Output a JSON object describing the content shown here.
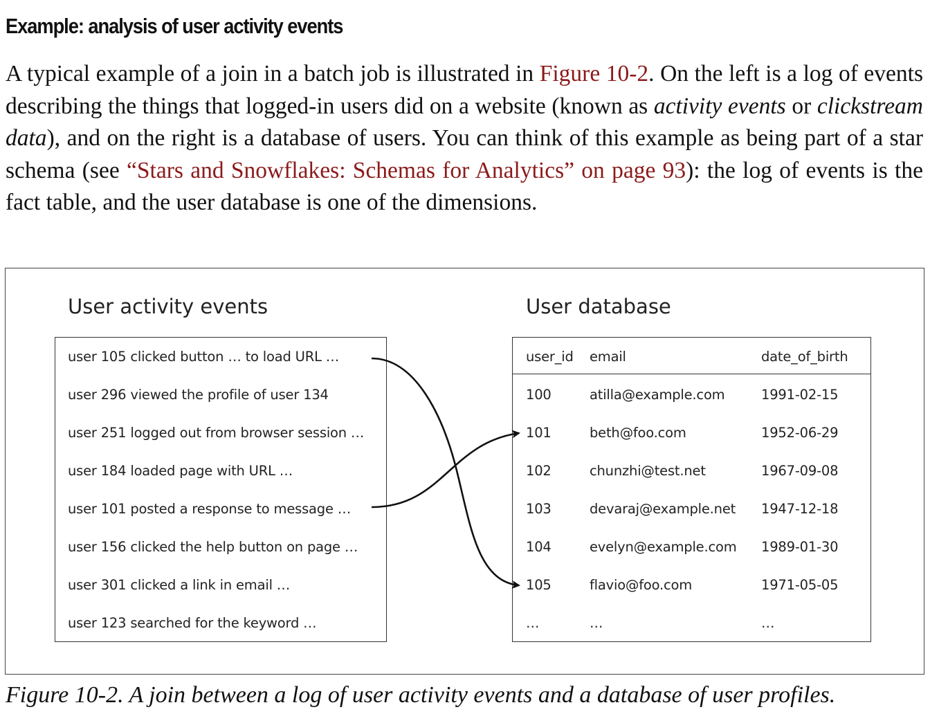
{
  "section_heading": "Example: analysis of user activity events",
  "paragraph": {
    "t1": "A typical example of a join in a batch job is illustrated in ",
    "link1": "Figure 10-2",
    "t2": ". On the left is a log of events describing the things that logged-in users did on a website (known as ",
    "em1": "activity events",
    "t3": " or ",
    "em2": "clickstream data",
    "t4": "), and on the right is a database of users. You can think of this example as being part of a star schema (see ",
    "link2": "“Stars and Snowflakes: Schemas for Analytics” on page 93",
    "t5": "): the log of events is the fact table, and the user database is one of the dimensions."
  },
  "figure": {
    "events_title": "User activity events",
    "events": [
      "user 105 clicked button … to load URL …",
      "user 296 viewed the profile of user 134",
      "user 251 logged out from browser session …",
      "user 184 loaded page with URL …",
      "user 101 posted a response to message …",
      "user 156 clicked the help button on page …",
      "user 301 clicked a link in email …",
      "user 123 searched for the keyword …"
    ],
    "db_title": "User database",
    "db_columns": [
      "user_id",
      "email",
      "date_of_birth"
    ],
    "db_rows": [
      [
        "100",
        "atilla@example.com",
        "1991-02-15"
      ],
      [
        "101",
        "beth@foo.com",
        "1952-06-29"
      ],
      [
        "102",
        "chunzhi@test.net",
        "1967-09-08"
      ],
      [
        "103",
        "devaraj@example.net",
        "1947-12-18"
      ],
      [
        "104",
        "evelyn@example.com",
        "1989-01-30"
      ],
      [
        "105",
        "flavio@foo.com",
        "1971-05-05"
      ],
      [
        "…",
        "…",
        "…"
      ]
    ],
    "links": [
      {
        "from_event": "user 105 clicked button … to load URL …",
        "to_user_id": "105"
      },
      {
        "from_event": "user 101 posted a response to message …",
        "to_user_id": "101"
      }
    ]
  },
  "caption": "Figure 10-2. A join between a log of user activity events and a database of user profiles."
}
